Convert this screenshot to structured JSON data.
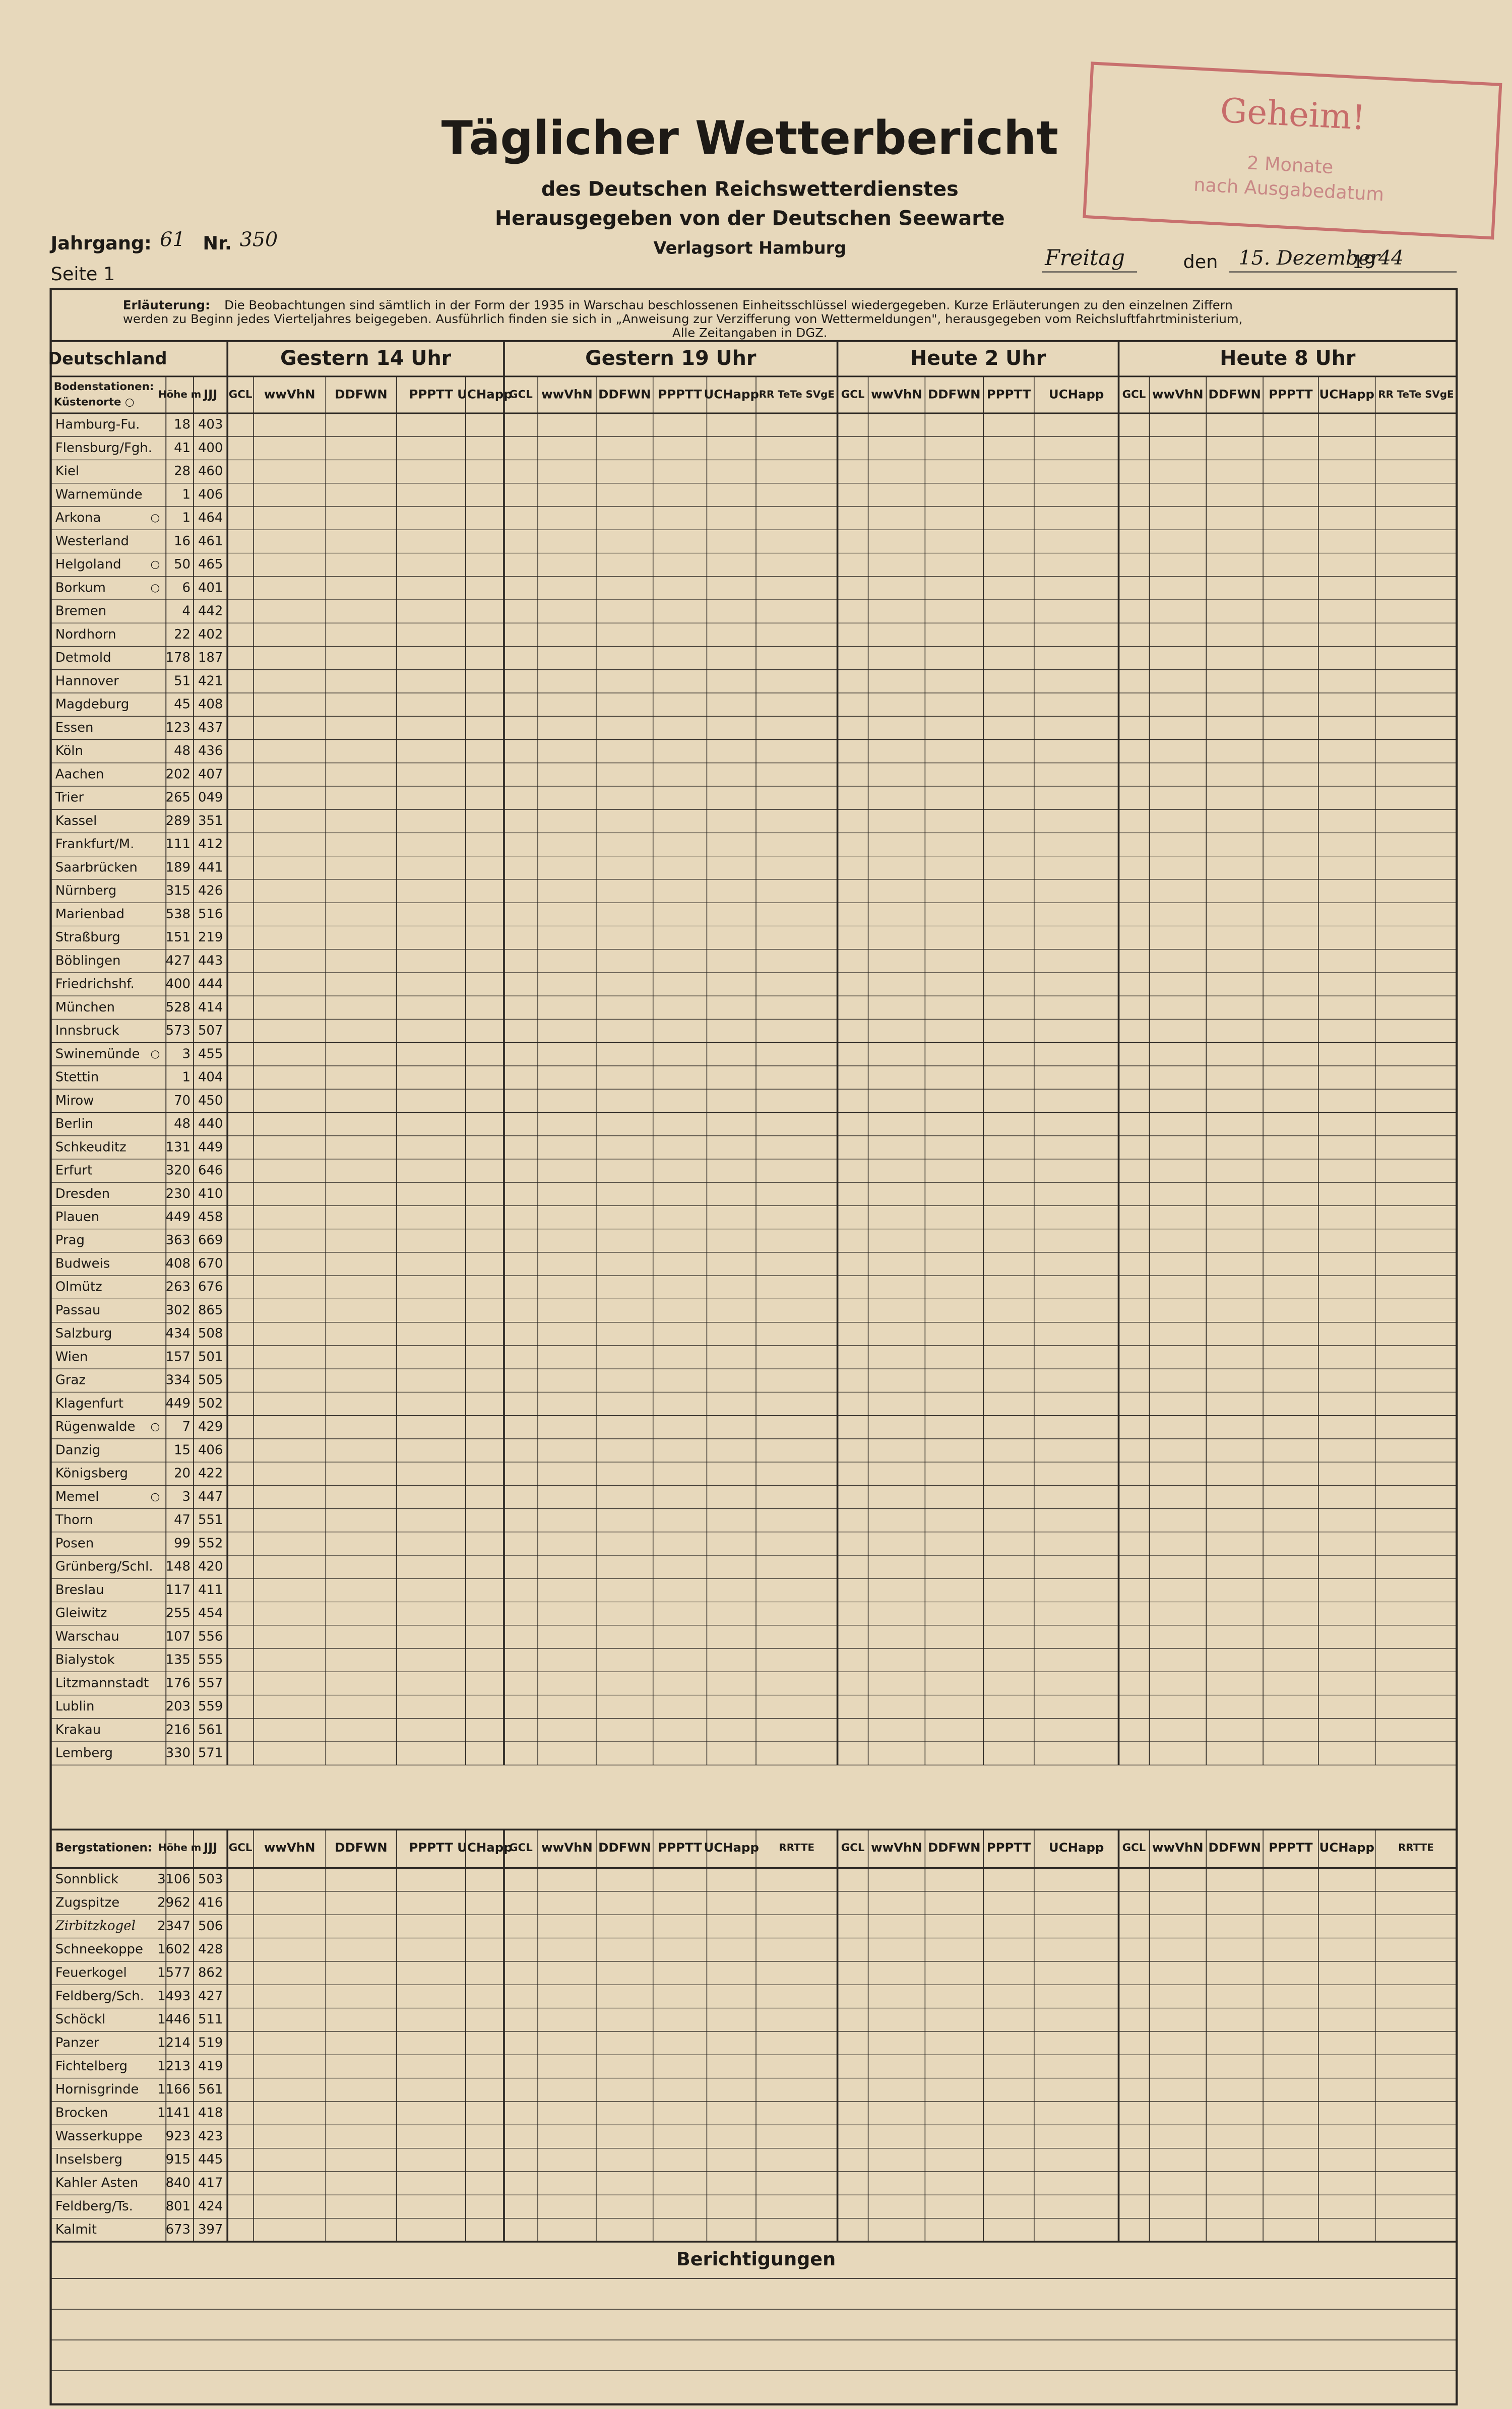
{
  "header": {
    "title": "Täglicher Wetterbericht",
    "subtitle": "des Deutschen Reichswetterdienstes",
    "publisher": "Herausgegeben von der Deutschen Seewarte",
    "place": "Verlagsort Hamburg",
    "volume_label": "Jahrgang:",
    "volume": "61",
    "number_label": "Nr.",
    "number": "350",
    "page": "Seite 1",
    "weekday": "Freitag",
    "date_label": "den",
    "date": "15. Dezember",
    "year_prefix": "19",
    "year": "44",
    "stamp": [
      "Geheim!",
      "2 Monate",
      "nach Ausgabedatum"
    ]
  },
  "explanation": {
    "label": "Erläuterung:",
    "lines": [
      "Die Beobachtungen sind sämtlich in der Form der 1935 in Warschau beschlossenen Einheitsschlüssel wiedergegeben. Kurze Erläuterungen zu den einzelnen Ziffern",
      "werden zu Beginn jedes Vierteljahres beigegeben. Ausführlich finden sie sich in „Anweisung zur Verzifferung von Wettermeldungen\", herausgegeben vom Reichsluftfahrtministerium,",
      "Alle Zeitangaben in DGZ."
    ]
  },
  "table": {
    "region": "Deutschland",
    "periods": [
      "Gestern 14 Uhr",
      "Gestern 19 Uhr",
      "Heute 2 Uhr",
      "Heute 8 Uhr"
    ],
    "lowland_header": [
      "Bodenstationen:",
      "Küstenorte ○"
    ],
    "height_header": "Höhe m",
    "jjj_header": "JJJ",
    "column_headers": [
      "GCL",
      "wwVhN",
      "DDFWN",
      "PPPTT",
      "UCHapp"
    ],
    "rr_header": "RR TeTe SVgE",
    "coast_marker": "○",
    "lowland_stations": [
      {
        "name": "Hamburg-Fu.",
        "height": "18",
        "jjj": "403"
      },
      {
        "name": "Flensburg/Fgh.",
        "height": "41",
        "jjj": "400"
      },
      {
        "name": "Kiel",
        "height": "28",
        "jjj": "460"
      },
      {
        "name": "Warnemünde",
        "height": "1",
        "jjj": "406"
      },
      {
        "name": "Arkona",
        "height": "1",
        "jjj": "464",
        "coast": true
      },
      {
        "name": "Westerland",
        "height": "16",
        "jjj": "461"
      },
      {
        "name": "Helgoland",
        "height": "50",
        "jjj": "465",
        "coast": true
      },
      {
        "name": "Borkum",
        "height": "6",
        "jjj": "401",
        "coast": true
      },
      {
        "name": "Bremen",
        "height": "4",
        "jjj": "442"
      },
      {
        "name": "Nordhorn",
        "height": "22",
        "jjj": "402"
      },
      {
        "name": "Detmold",
        "height": "178",
        "jjj": "187"
      },
      {
        "name": "Hannover",
        "height": "51",
        "jjj": "421"
      },
      {
        "name": "Magdeburg",
        "height": "45",
        "jjj": "408"
      },
      {
        "name": "Essen",
        "height": "123",
        "jjj": "437"
      },
      {
        "name": "Köln",
        "height": "48",
        "jjj": "436"
      },
      {
        "name": "Aachen",
        "height": "202",
        "jjj": "407"
      },
      {
        "name": "Trier",
        "height": "265",
        "jjj": "049"
      },
      {
        "name": "Kassel",
        "height": "289",
        "jjj": "351"
      },
      {
        "name": "Frankfurt/M.",
        "height": "111",
        "jjj": "412"
      },
      {
        "name": "Saarbrücken",
        "height": "189",
        "jjj": "441"
      },
      {
        "name": "Nürnberg",
        "height": "315",
        "jjj": "426"
      },
      {
        "name": "Marienbad",
        "height": "538",
        "jjj": "516"
      },
      {
        "name": "Straßburg",
        "height": "151",
        "jjj": "219"
      },
      {
        "name": "Böblingen",
        "height": "427",
        "jjj": "443"
      },
      {
        "name": "Friedrichshf.",
        "height": "400",
        "jjj": "444"
      },
      {
        "name": "München",
        "height": "528",
        "jjj": "414"
      },
      {
        "name": "Innsbruck",
        "height": "573",
        "jjj": "507"
      },
      {
        "name": "Swinemünde",
        "height": "3",
        "jjj": "455",
        "coast": true
      },
      {
        "name": "Stettin",
        "height": "1",
        "jjj": "404"
      },
      {
        "name": "Mirow",
        "height": "70",
        "jjj": "450"
      },
      {
        "name": "Berlin",
        "height": "48",
        "jjj": "440"
      },
      {
        "name": "Schkeuditz",
        "height": "131",
        "jjj": "449"
      },
      {
        "name": "Erfurt",
        "height": "320",
        "jjj": "646"
      },
      {
        "name": "Dresden",
        "height": "230",
        "jjj": "410"
      },
      {
        "name": "Plauen",
        "height": "449",
        "jjj": "458"
      },
      {
        "name": "Prag",
        "height": "363",
        "jjj": "669"
      },
      {
        "name": "Budweis",
        "height": "408",
        "jjj": "670"
      },
      {
        "name": "Olmütz",
        "height": "263",
        "jjj": "676"
      },
      {
        "name": "Passau",
        "height": "302",
        "jjj": "865"
      },
      {
        "name": "Salzburg",
        "height": "434",
        "jjj": "508"
      },
      {
        "name": "Wien",
        "height": "157",
        "jjj": "501"
      },
      {
        "name": "Graz",
        "height": "334",
        "jjj": "505"
      },
      {
        "name": "Klagenfurt",
        "height": "449",
        "jjj": "502"
      },
      {
        "name": "Rügenwalde",
        "height": "7",
        "jjj": "429",
        "coast": true
      },
      {
        "name": "Danzig",
        "height": "15",
        "jjj": "406"
      },
      {
        "name": "Königsberg",
        "height": "20",
        "jjj": "422"
      },
      {
        "name": "Memel",
        "height": "3",
        "jjj": "447",
        "coast": true
      },
      {
        "name": "Thorn",
        "height": "47",
        "jjj": "551"
      },
      {
        "name": "Posen",
        "height": "99",
        "jjj": "552"
      },
      {
        "name": "Grünberg/Schl.",
        "height": "148",
        "jjj": "420"
      },
      {
        "name": "Breslau",
        "height": "117",
        "jjj": "411"
      },
      {
        "name": "Gleiwitz",
        "height": "255",
        "jjj": "454"
      },
      {
        "name": "Warschau",
        "height": "107",
        "jjj": "556"
      },
      {
        "name": "Bialystok",
        "height": "135",
        "jjj": "555"
      },
      {
        "name": "Litzmannstadt",
        "height": "176",
        "jjj": "557"
      },
      {
        "name": "Lublin",
        "height": "203",
        "jjj": "559"
      },
      {
        "name": "Krakau",
        "height": "216",
        "jjj": "561"
      },
      {
        "name": "Lemberg",
        "height": "330",
        "jjj": "571"
      }
    ],
    "mountain_header": "Bergstationen:",
    "mountain_rr_header": "RRTTE",
    "mountain_stations": [
      {
        "name": "Sonnblick",
        "height": "3106",
        "jjj": "503"
      },
      {
        "name": "Zugspitze",
        "height": "2962",
        "jjj": "416"
      },
      {
        "name": "Zirbitzkogel",
        "height": "2347",
        "jjj": "506"
      },
      {
        "name": "Schneekoppe",
        "height": "1602",
        "jjj": "428"
      },
      {
        "name": "Feuerkogel",
        "height": "1577",
        "jjj": "862"
      },
      {
        "name": "Feldberg/Sch.",
        "height": "1493",
        "jjj": "427"
      },
      {
        "name": "Schöckl",
        "height": "1446",
        "jjj": "511"
      },
      {
        "name": "Panzer",
        "height": "1214",
        "jjj": "519"
      },
      {
        "name": "Fichtelberg",
        "height": "1213",
        "jjj": "419"
      },
      {
        "name": "Hornisgrinde",
        "height": "1166",
        "jjj": "561"
      },
      {
        "name": "Brocken",
        "height": "1141",
        "jjj": "418"
      },
      {
        "name": "Wasserkuppe",
        "height": "923",
        "jjj": "423"
      },
      {
        "name": "Inselsberg",
        "height": "915",
        "jjj": "445"
      },
      {
        "name": "Kahler Asten",
        "height": "840",
        "jjj": "417"
      },
      {
        "name": "Feldberg/Ts.",
        "height": "801",
        "jjj": "424"
      },
      {
        "name": "Kalmit",
        "height": "673",
        "jjj": "397"
      }
    ]
  },
  "corrections": {
    "title": "Berichtigungen"
  }
}
